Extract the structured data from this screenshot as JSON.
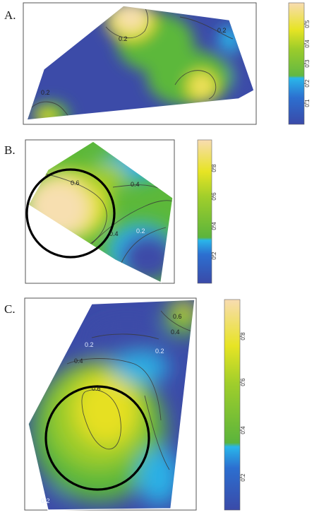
{
  "panels": [
    {
      "label": "A.",
      "colorbar": {
        "ticks": [
          "0.1",
          "0.2",
          "0.3",
          "0.4",
          "0.5"
        ]
      },
      "contour_labels": [
        "0.2",
        "0.2",
        "0.2"
      ]
    },
    {
      "label": "B.",
      "colorbar": {
        "ticks": [
          "0.2",
          "0.4",
          "0.6",
          "0.8"
        ]
      },
      "contour_labels": [
        "0.6",
        "0.4",
        "0.4",
        "0.2"
      ]
    },
    {
      "label": "C.",
      "colorbar": {
        "ticks": [
          "0.2",
          "0.4",
          "0.6",
          "0.8"
        ]
      },
      "contour_labels": [
        "0.2",
        "0.2",
        "0.4",
        "0.6",
        "0.6",
        "0.4",
        "0.2"
      ]
    }
  ],
  "colors": {
    "low": "#3a4aa8",
    "mid_blue": "#2ab0e6",
    "green": "#5cb83a",
    "yellow": "#e6e020",
    "peak": "#f7dfb0"
  }
}
